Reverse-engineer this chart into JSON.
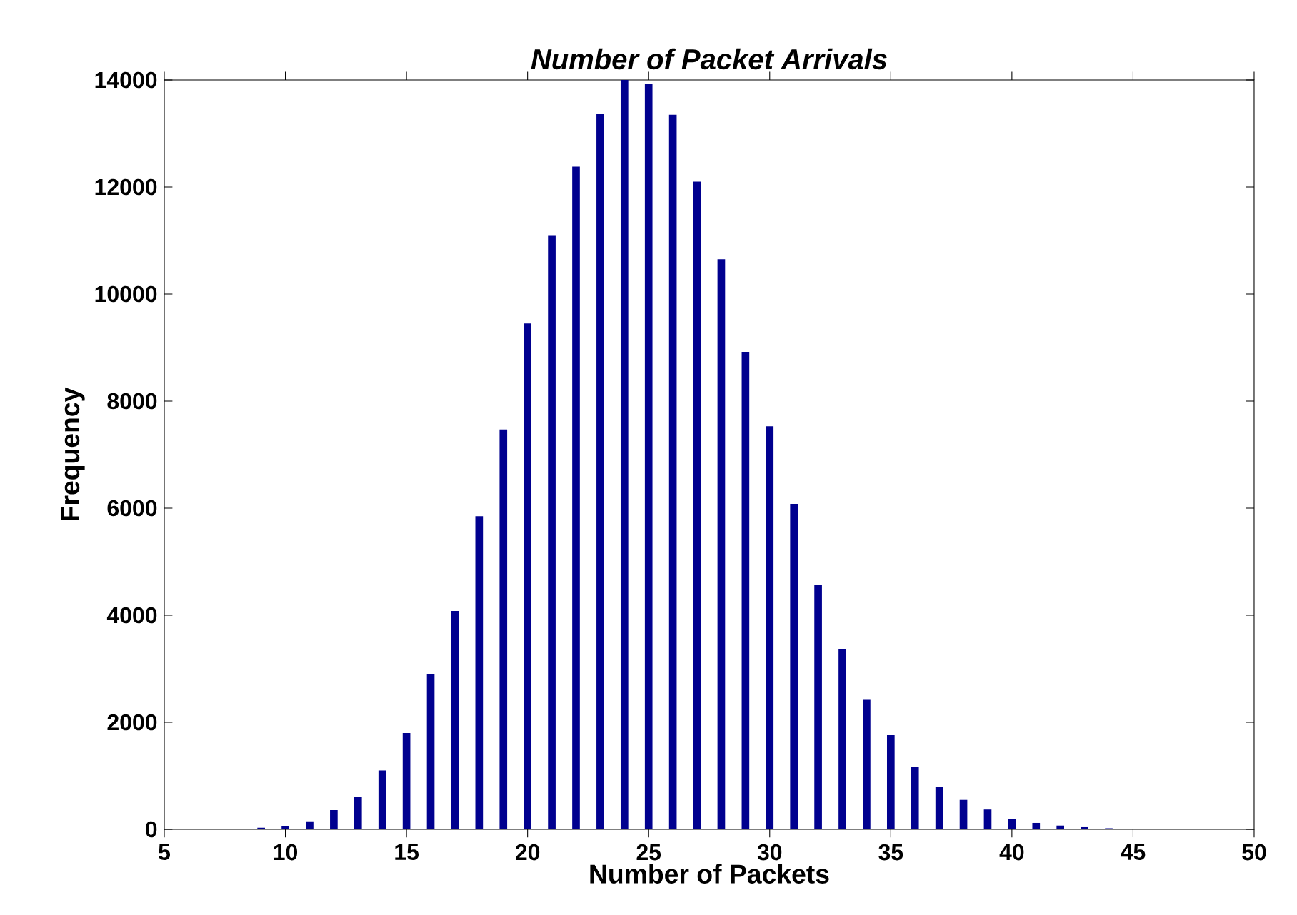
{
  "chart_data": {
    "type": "bar",
    "title": "Number of Packet Arrivals",
    "xlabel": "Number of Packets",
    "ylabel": "Frequency",
    "x": [
      8,
      9,
      10,
      11,
      12,
      13,
      14,
      15,
      16,
      17,
      18,
      19,
      20,
      21,
      22,
      23,
      24,
      25,
      26,
      27,
      28,
      29,
      30,
      31,
      32,
      33,
      34,
      35,
      36,
      37,
      38,
      39,
      40,
      41,
      42,
      43,
      44
    ],
    "values": [
      10,
      30,
      60,
      150,
      360,
      600,
      1100,
      1800,
      2900,
      4080,
      5850,
      7470,
      9450,
      11100,
      12380,
      13360,
      14000,
      13920,
      13350,
      12100,
      10650,
      8920,
      7530,
      6080,
      4560,
      3370,
      2420,
      1760,
      1160,
      790,
      550,
      370,
      200,
      120,
      70,
      40,
      20
    ],
    "color": "#00008f",
    "xlim": [
      5,
      50
    ],
    "xticks": [
      5,
      10,
      15,
      20,
      25,
      30,
      35,
      40,
      45,
      50
    ],
    "ylim": [
      0,
      14000
    ],
    "yticks": [
      0,
      2000,
      4000,
      6000,
      8000,
      10000,
      12000,
      14000
    ],
    "grid": false
  }
}
